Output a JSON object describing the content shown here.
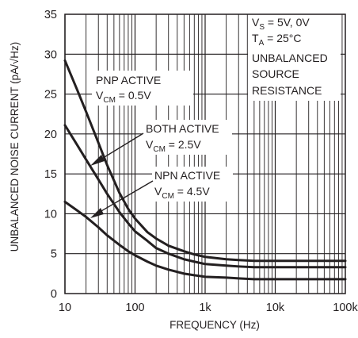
{
  "chart_data": {
    "type": "line",
    "title": "",
    "xlabel": "FREQUENCY (Hz)",
    "ylabel": "UNBALANCED NOISE CURRENT (pA/√Hz)",
    "xscale": "log",
    "xlim": [
      10,
      100000
    ],
    "ylim": [
      0,
      35
    ],
    "grid": true,
    "x_ticks": [
      10,
      100,
      1000,
      10000,
      100000
    ],
    "x_tick_labels": [
      "10",
      "100",
      "1k",
      "10k",
      "100k"
    ],
    "y_ticks": [
      0,
      5,
      10,
      15,
      20,
      25,
      30,
      35
    ],
    "y_tick_labels": [
      "0",
      "5",
      "10",
      "15",
      "20",
      "25",
      "30",
      "35"
    ],
    "colors": {
      "line": "#231f20",
      "grid": "#231f20",
      "background": "#ffffff"
    },
    "series": [
      {
        "name": "PNP ACTIVE",
        "x": [
          10,
          15,
          20,
          30,
          40,
          60,
          80,
          100,
          150,
          200,
          300,
          500,
          700,
          1000,
          2000,
          3000,
          5000,
          10000,
          20000,
          50000,
          100000
        ],
        "y": [
          29.2,
          25.5,
          22.8,
          18.9,
          16.1,
          12.6,
          10.6,
          9.4,
          7.7,
          6.9,
          6.0,
          5.3,
          4.9,
          4.6,
          4.3,
          4.2,
          4.1,
          4.1,
          4.1,
          4.1,
          4.1
        ]
      },
      {
        "name": "BOTH ACTIVE",
        "x": [
          10,
          15,
          20,
          30,
          40,
          60,
          80,
          100,
          150,
          200,
          300,
          500,
          700,
          1000,
          2000,
          3000,
          5000,
          10000,
          20000,
          50000,
          100000
        ],
        "y": [
          21.1,
          18.6,
          16.8,
          14.3,
          12.5,
          10.2,
          8.8,
          7.8,
          6.6,
          5.7,
          5.0,
          4.3,
          4.0,
          3.7,
          3.5,
          3.4,
          3.3,
          3.3,
          3.3,
          3.3,
          3.3
        ]
      },
      {
        "name": "NPN ACTIVE",
        "x": [
          10,
          15,
          20,
          30,
          40,
          60,
          80,
          100,
          150,
          200,
          300,
          500,
          700,
          1000,
          2000,
          3000,
          5000,
          10000,
          20000,
          50000,
          100000
        ],
        "y": [
          11.5,
          10.4,
          9.6,
          8.3,
          7.3,
          6.1,
          5.3,
          4.8,
          4.0,
          3.5,
          3.0,
          2.5,
          2.3,
          2.1,
          2.0,
          1.9,
          1.8,
          1.8,
          1.8,
          1.8,
          1.8
        ]
      }
    ],
    "annotations": {
      "conditions": [
        {
          "pre": "V",
          "sub": "S",
          "post": " = 5V, 0V"
        },
        {
          "pre": "T",
          "sub": "A",
          "post": " = 25°C"
        },
        {
          "pre": "UNBALANCED",
          "sub": "",
          "post": ""
        },
        {
          "pre": "SOURCE",
          "sub": "",
          "post": ""
        },
        {
          "pre": "RESISTANCE",
          "sub": "",
          "post": ""
        }
      ],
      "pnp": {
        "name": "PNP ACTIVE",
        "cm_pre": "V",
        "cm_sub": "CM",
        "cm_post": " = 0.5V"
      },
      "both": {
        "name": "BOTH ACTIVE",
        "cm_pre": "V",
        "cm_sub": "CM",
        "cm_post": " = 2.5V"
      },
      "npn": {
        "name": "NPN ACTIVE",
        "cm_pre": "V",
        "cm_sub": "CM",
        "cm_post": " = 4.5V"
      }
    }
  }
}
